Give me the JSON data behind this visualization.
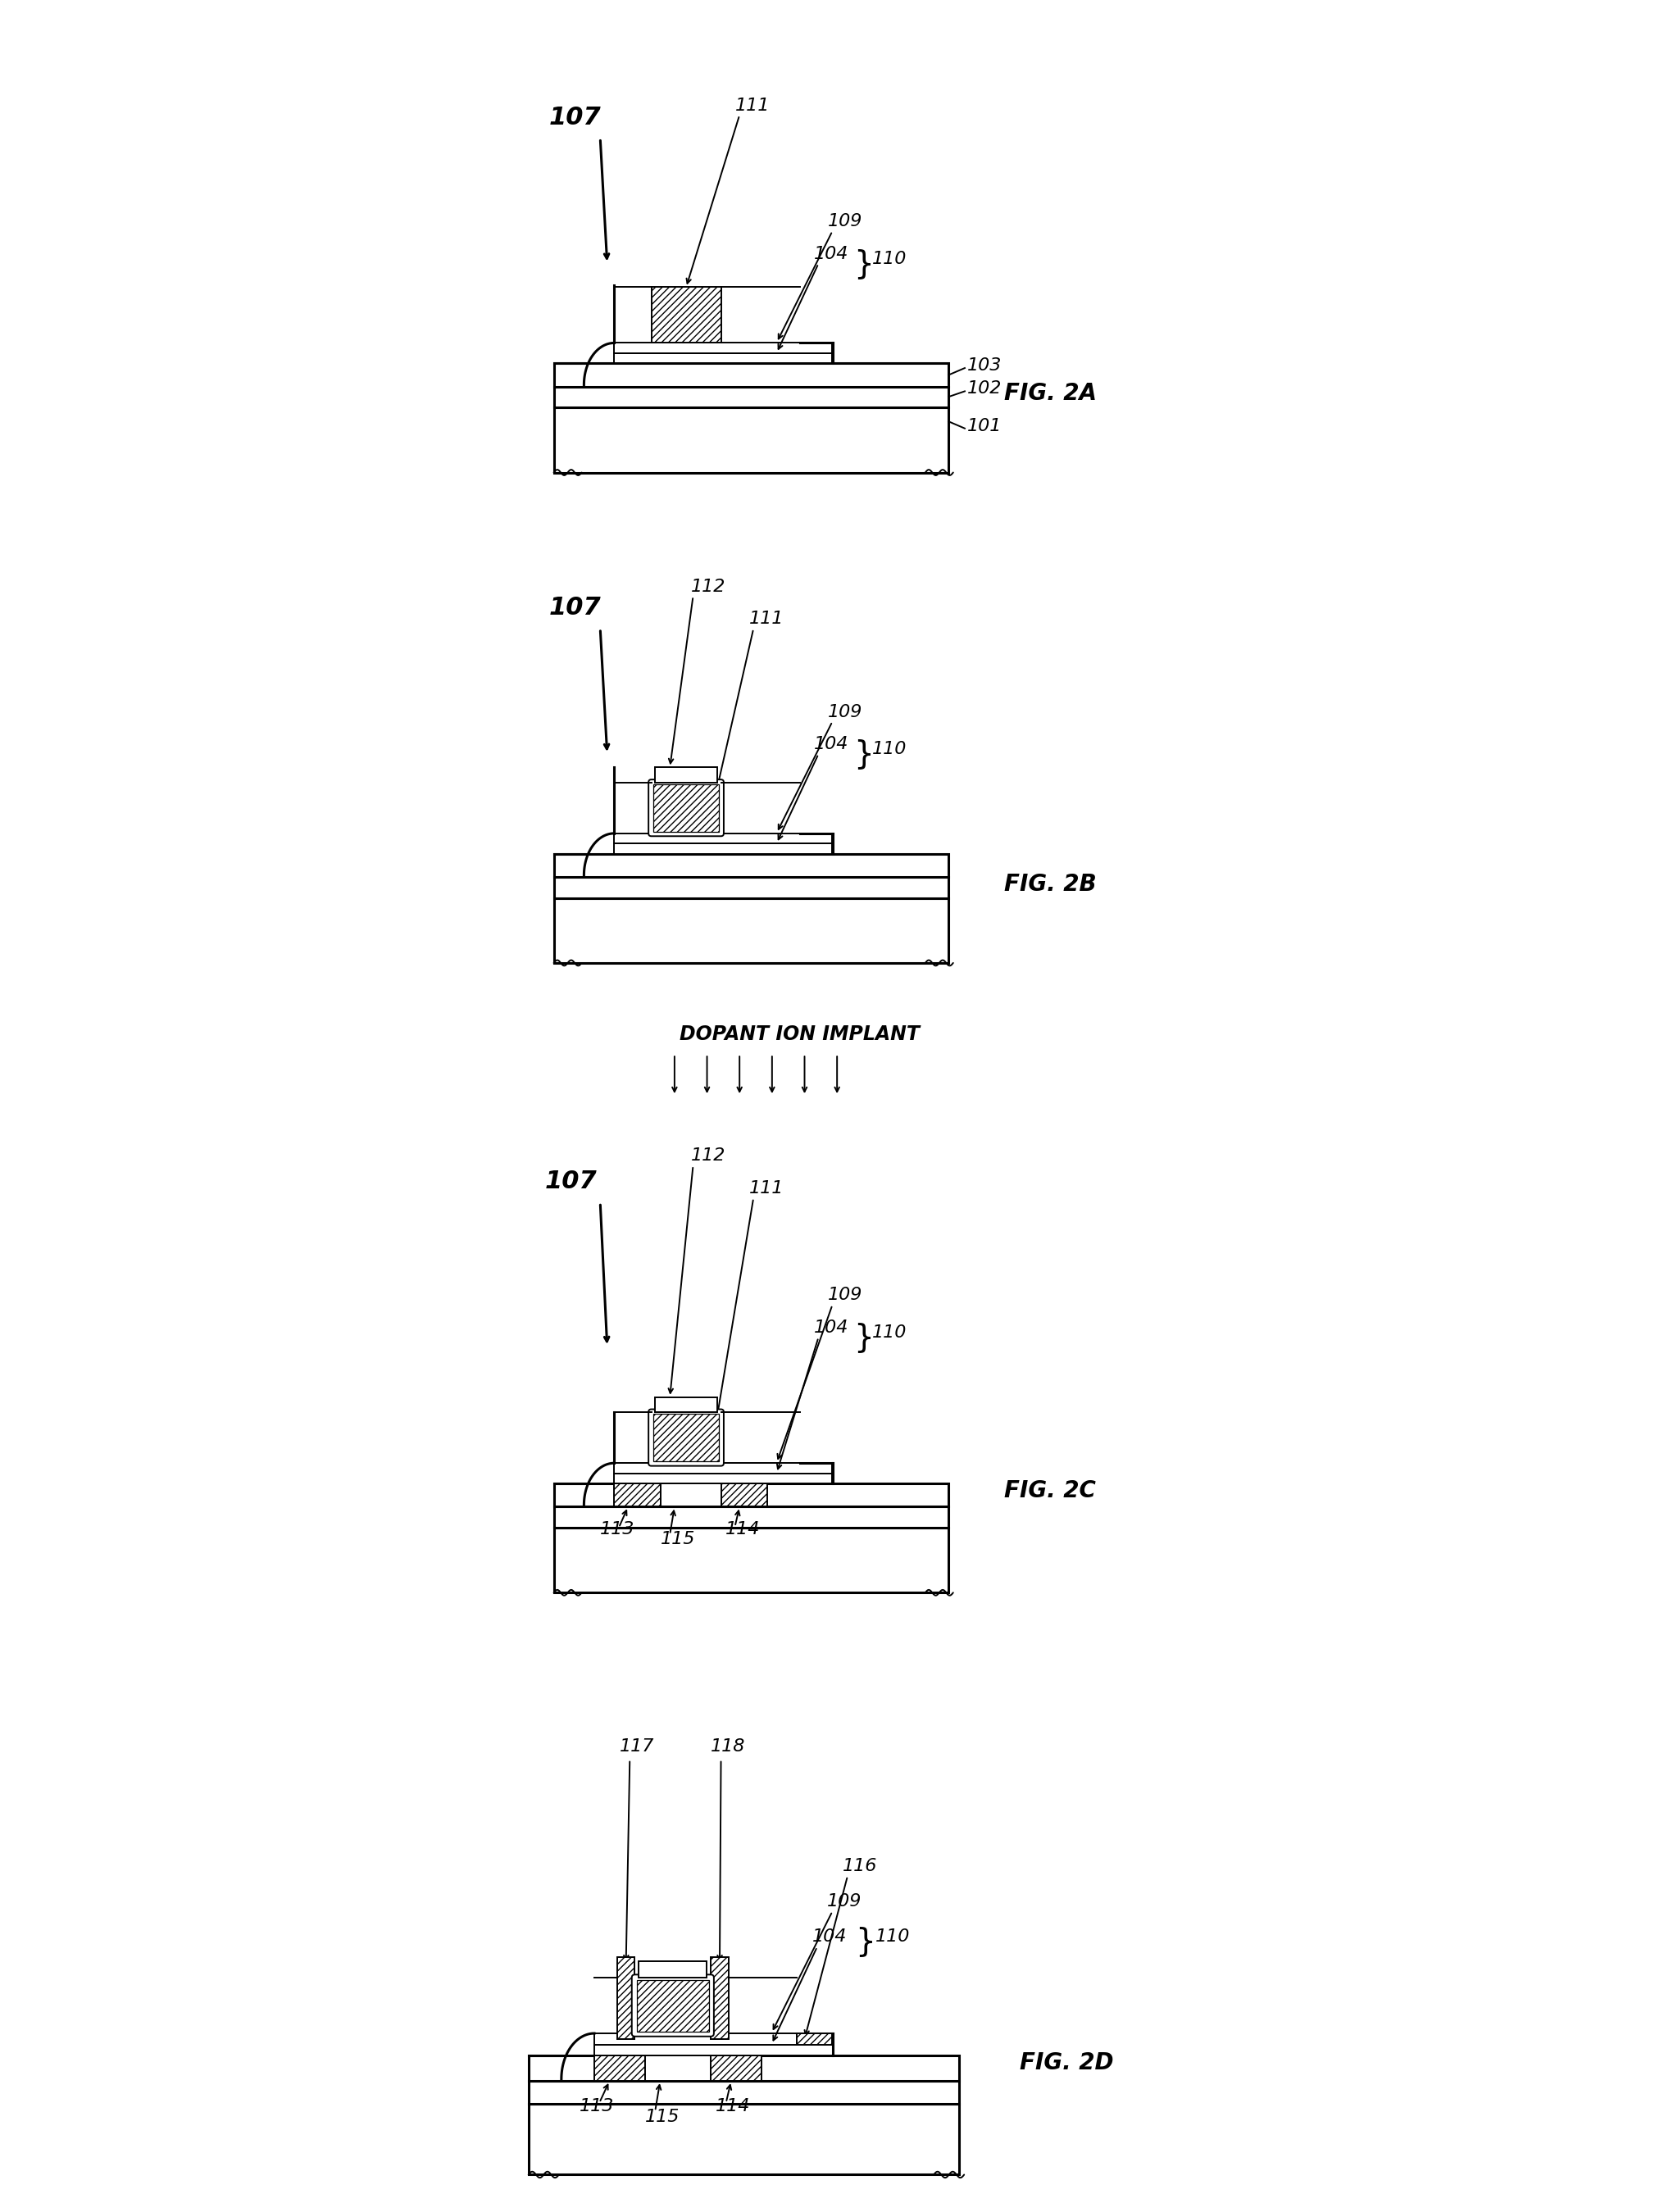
{
  "fig_labels": [
    "FIG. 2A",
    "FIG. 2B",
    "FIG. 2C",
    "FIG. 2D"
  ],
  "background_color": "#ffffff",
  "line_color": "#000000",
  "lw": 2.2,
  "lw_thin": 1.4,
  "lw_medium": 1.8,
  "dopant_text": "DOPANT ION IMPLANT",
  "label_107": "107",
  "label_111": "111",
  "label_112": "112",
  "label_109": "109",
  "label_104": "104",
  "label_110": "110",
  "label_103": "103",
  "label_102": "102",
  "label_101": "101",
  "label_113": "113",
  "label_114": "114",
  "label_115": "115",
  "label_116": "116",
  "label_117": "117",
  "label_118": "118",
  "fs_bold": 22,
  "fs_label": 16,
  "fs_fig": 20
}
